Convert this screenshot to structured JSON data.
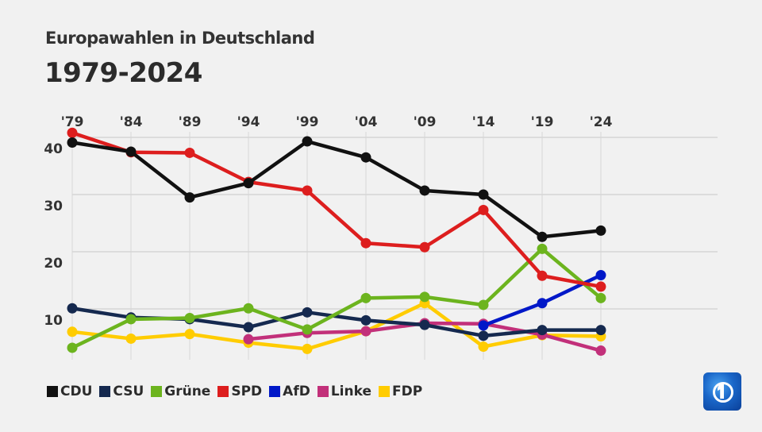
{
  "header": {
    "subtitle": "Europawahlen in Deutschland",
    "title": "1979-2024"
  },
  "chart_data": {
    "type": "line",
    "title": "1979-2024",
    "subtitle": "Europawahlen in Deutschland",
    "xlabel": "",
    "ylabel": "",
    "x": [
      "'79",
      "'84",
      "'89",
      "'94",
      "'99",
      "'04",
      "'09",
      "'14",
      "'19",
      "'24"
    ],
    "y_ticks": [
      10,
      20,
      30,
      40
    ],
    "ylim": [
      0,
      40
    ],
    "grid": true,
    "x_axis_position": "top",
    "legend_position": "bottom-left",
    "series": [
      {
        "name": "CDU",
        "color": "#111111",
        "values": [
          39.1,
          37.5,
          29.5,
          32.0,
          39.3,
          36.5,
          30.7,
          30.0,
          22.6,
          23.7
        ]
      },
      {
        "name": "CSU",
        "color": "#15294f",
        "values": [
          10.1,
          8.5,
          8.2,
          6.8,
          9.4,
          8.0,
          7.2,
          5.3,
          6.3,
          6.3
        ]
      },
      {
        "name": "Grüne",
        "color": "#6cb41e",
        "values": [
          3.2,
          8.2,
          8.4,
          10.1,
          6.4,
          11.9,
          12.1,
          10.7,
          20.5,
          11.9
        ]
      },
      {
        "name": "SPD",
        "color": "#dd1e1e",
        "values": [
          40.8,
          37.4,
          37.3,
          32.2,
          30.7,
          21.5,
          20.8,
          27.3,
          15.8,
          13.9
        ]
      },
      {
        "name": "AfD",
        "color": "#0018c8",
        "values": [
          null,
          null,
          null,
          null,
          null,
          null,
          null,
          7.1,
          11.0,
          15.9
        ]
      },
      {
        "name": "Linke",
        "color": "#c2307a",
        "values": [
          null,
          null,
          null,
          4.7,
          5.8,
          6.1,
          7.5,
          7.4,
          5.5,
          2.7
        ]
      },
      {
        "name": "FDP",
        "color": "#ffcc00",
        "values": [
          6.0,
          4.8,
          5.6,
          4.1,
          3.0,
          6.1,
          11.0,
          3.4,
          5.4,
          5.2
        ]
      }
    ]
  },
  "legend": [
    {
      "label": "CDU",
      "color": "#111111"
    },
    {
      "label": "CSU",
      "color": "#15294f"
    },
    {
      "label": "Grüne",
      "color": "#6cb41e"
    },
    {
      "label": "SPD",
      "color": "#dd1e1e"
    },
    {
      "label": "AfD",
      "color": "#0018c8"
    },
    {
      "label": "Linke",
      "color": "#c2307a"
    },
    {
      "label": "FDP",
      "color": "#ffcc00"
    }
  ],
  "logo": {
    "icon": "tagesschau-logo-icon"
  }
}
